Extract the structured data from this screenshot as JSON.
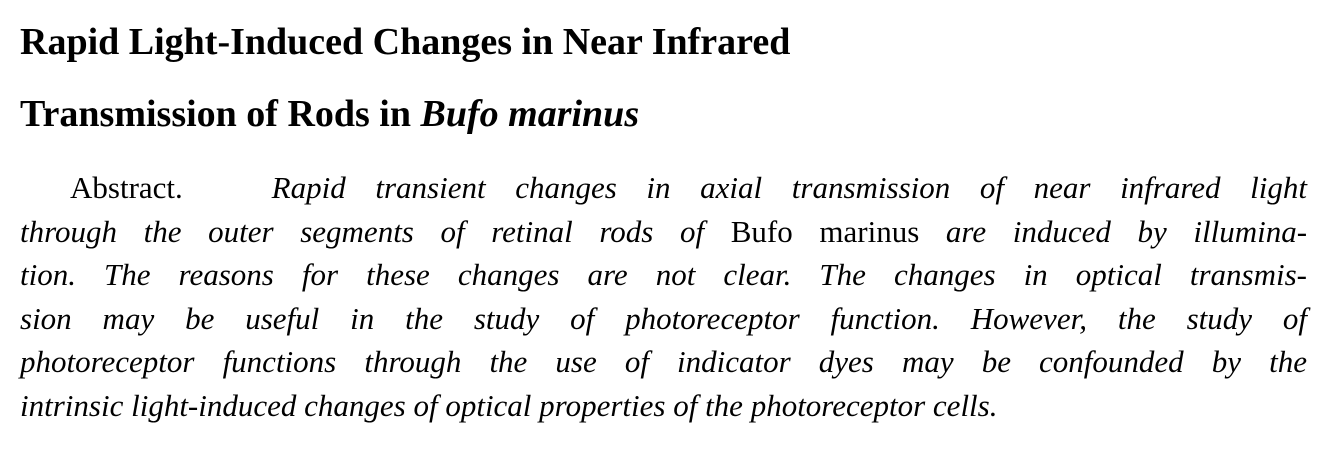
{
  "title": {
    "line1": "Rapid Light-Induced Changes in Near Infrared",
    "line2_prefix": "Transmission of Rods in ",
    "line2_species": "Bufo marinus"
  },
  "abstract": {
    "label": "Abstract.",
    "lines": [
      "Rapid transient changes in axial transmission of near infrared light",
      "through the outer segments of retinal rods of",
      "Bufo marinus",
      "are induced by illumina-",
      "tion.  The reasons for these changes are not clear.  The changes in optical transmis-",
      "sion may be useful in the study of photoreceptor function.  However, the study of",
      "photoreceptor functions through the use of indicator dyes may be confounded by the",
      "intrinsic light-induced changes of optical properties of the photoreceptor cells."
    ]
  }
}
